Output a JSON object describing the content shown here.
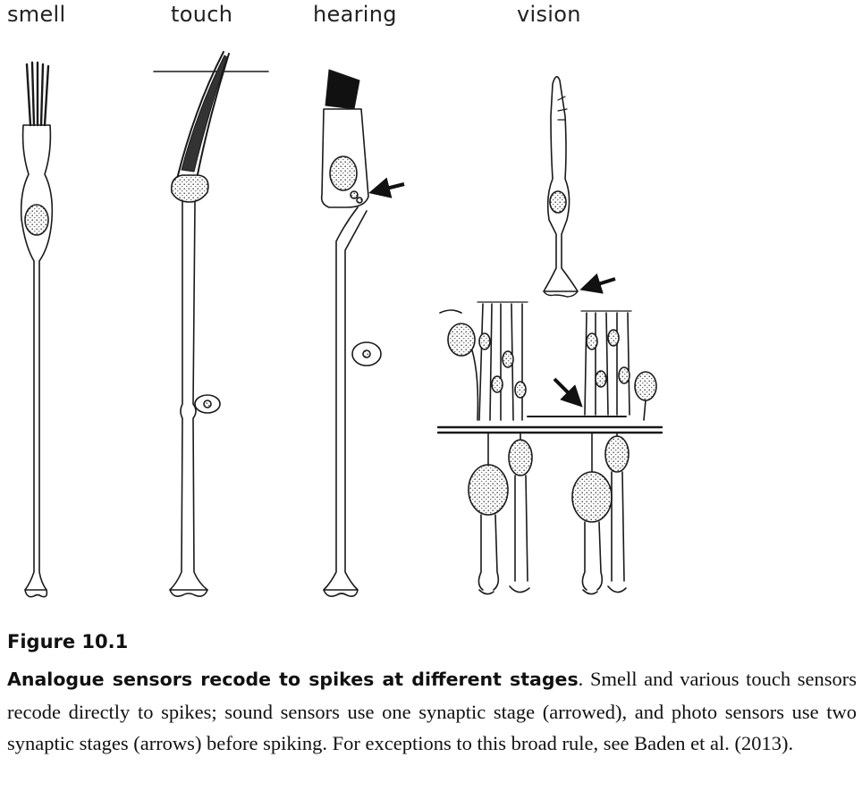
{
  "labels": {
    "smell": "smell",
    "touch": "touch",
    "hearing": "hearing",
    "vision": "vision"
  },
  "figure": {
    "number": "Figure 10.1",
    "caption_bold": "Analogue sensors recode to spikes at different stages",
    "caption_rest": ". Smell and various touch sensors recode directly to spikes; sound sensors use one synaptic stage (arrowed), and photo sensors use two synaptic stages (arrows) before spiking. For exceptions to this broad rule, see Baden et al. (2013)."
  }
}
